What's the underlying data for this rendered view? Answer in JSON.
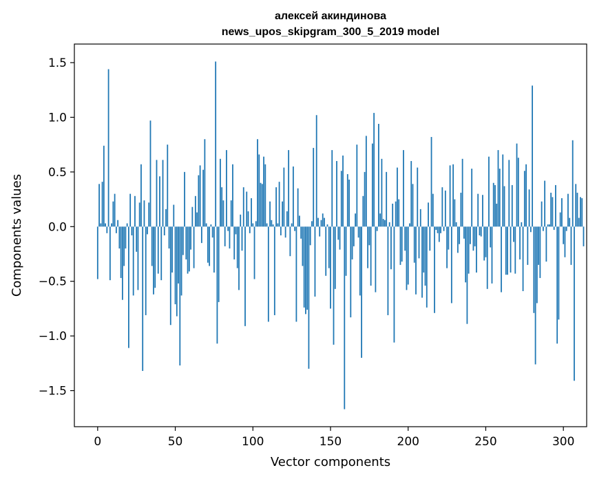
{
  "chart_data": {
    "type": "bar",
    "title_line1": "алексей акиндинова",
    "title_line2": "news_upos_skipgram_300_5_2019 model",
    "xlabel": "Vector components",
    "ylabel": "Components values",
    "xlim": [
      -15,
      315
    ],
    "ylim": [
      -1.83,
      1.67
    ],
    "xticks": [
      0,
      50,
      100,
      150,
      200,
      250,
      300
    ],
    "xtick_labels": [
      "0",
      "50",
      "100",
      "150",
      "200",
      "250",
      "300"
    ],
    "yticks": [
      -1.5,
      -1.0,
      -0.5,
      0.0,
      0.5,
      1.0,
      1.5
    ],
    "ytick_labels": [
      "−1.5",
      "−1.0",
      "−0.5",
      "0.0",
      "0.5",
      "1.0",
      "1.5"
    ],
    "bar_color": "#1f77b4",
    "grid": false,
    "values": [
      -0.48,
      0.39,
      0.03,
      0.41,
      0.74,
      0.03,
      -0.06,
      1.44,
      -0.49,
      0.03,
      0.23,
      0.3,
      -0.06,
      0.06,
      -0.2,
      -0.47,
      -0.67,
      -0.36,
      -0.2,
      0.03,
      -1.11,
      0.3,
      -0.08,
      -0.63,
      0.28,
      -0.23,
      -0.58,
      0.22,
      0.57,
      -1.32,
      0.24,
      -0.81,
      -0.07,
      0.22,
      0.97,
      -0.36,
      -0.62,
      -0.56,
      0.61,
      -0.43,
      0.46,
      -0.49,
      0.61,
      -0.08,
      0.16,
      0.75,
      -0.2,
      -0.9,
      -0.42,
      0.2,
      -0.71,
      -0.82,
      -0.52,
      -1.27,
      -0.63,
      -0.26,
      0.5,
      -0.3,
      -0.43,
      -0.41,
      -0.21,
      0.18,
      -0.38,
      0.28,
      0.13,
      0.47,
      0.56,
      -0.15,
      0.52,
      0.8,
      0.03,
      -0.33,
      -0.36,
      0.02,
      -0.1,
      -0.42,
      1.51,
      -1.07,
      -0.69,
      0.62,
      0.36,
      0.24,
      -0.18,
      0.7,
      -0.04,
      -0.2,
      0.24,
      0.57,
      -0.3,
      -0.07,
      -0.38,
      -0.58,
      0.11,
      -0.22,
      0.36,
      -0.91,
      0.32,
      0.14,
      -0.06,
      0.26,
      0.03,
      -0.48,
      0.05,
      0.8,
      0.66,
      0.4,
      0.39,
      0.64,
      0.57,
      0.03,
      -0.87,
      0.23,
      0.06,
      0.02,
      -0.81,
      0.36,
      0.03,
      0.41,
      -0.08,
      0.23,
      0.54,
      -0.1,
      0.14,
      0.7,
      -0.27,
      0.03,
      0.55,
      -0.04,
      -0.87,
      0.35,
      0.1,
      -0.11,
      -0.36,
      -0.74,
      -0.8,
      -0.76,
      -1.3,
      -0.17,
      0.05,
      0.72,
      -0.64,
      1.02,
      0.08,
      -0.09,
      0.06,
      0.12,
      0.08,
      -0.45,
      0.02,
      -0.38,
      -0.75,
      0.7,
      -1.08,
      -0.57,
      0.6,
      -0.12,
      -0.21,
      0.51,
      0.65,
      -1.67,
      -0.45,
      0.48,
      0.43,
      -0.83,
      -0.3,
      -0.18,
      0.12,
      0.75,
      -0.1,
      -0.63,
      -1.2,
      0.28,
      0.5,
      0.83,
      -0.38,
      -0.17,
      -0.54,
      0.76,
      1.04,
      -0.6,
      -0.04,
      0.94,
      0.12,
      0.62,
      0.07,
      0.06,
      0.5,
      -0.81,
      0.04,
      -0.39,
      0.21,
      -1.06,
      0.23,
      0.54,
      0.25,
      -0.35,
      -0.32,
      0.7,
      -0.22,
      -0.58,
      -0.53,
      0.03,
      0.6,
      0.39,
      -0.33,
      -0.62,
      0.54,
      -0.29,
      0.16,
      -0.65,
      -0.42,
      -0.54,
      -0.74,
      0.22,
      -0.22,
      0.82,
      0.3,
      -0.79,
      -0.03,
      -0.06,
      -0.14,
      -0.06,
      0.36,
      -0.04,
      0.33,
      -0.38,
      -0.21,
      0.56,
      -0.7,
      0.57,
      0.25,
      0.04,
      -0.24,
      -0.16,
      0.31,
      0.62,
      -0.11,
      -0.51,
      -0.89,
      -0.43,
      -0.16,
      0.53,
      -0.22,
      -0.18,
      -0.42,
      0.3,
      -0.08,
      -0.09,
      0.29,
      -0.31,
      -0.28,
      -0.57,
      0.64,
      -0.19,
      -0.52,
      0.4,
      0.38,
      0.21,
      0.7,
      0.53,
      -0.6,
      0.66,
      0.37,
      -0.44,
      -0.44,
      0.61,
      -0.42,
      0.38,
      -0.14,
      -0.43,
      0.76,
      0.63,
      -0.3,
      0.04,
      -0.59,
      0.51,
      0.57,
      -0.35,
      0.34,
      -0.05,
      1.29,
      -0.79,
      -1.26,
      -0.7,
      -0.35,
      -0.47,
      0.23,
      -0.04,
      0.42,
      -0.32,
      0.02,
      0.02,
      0.31,
      0.27,
      -0.03,
      0.38,
      -1.07,
      -0.85,
      0.13,
      0.26,
      -0.16,
      -0.28,
      -0.04,
      0.3,
      0.08,
      -0.35,
      0.79,
      -1.41,
      0.39,
      0.31,
      0.08,
      0.27,
      0.26,
      -0.18
    ]
  }
}
